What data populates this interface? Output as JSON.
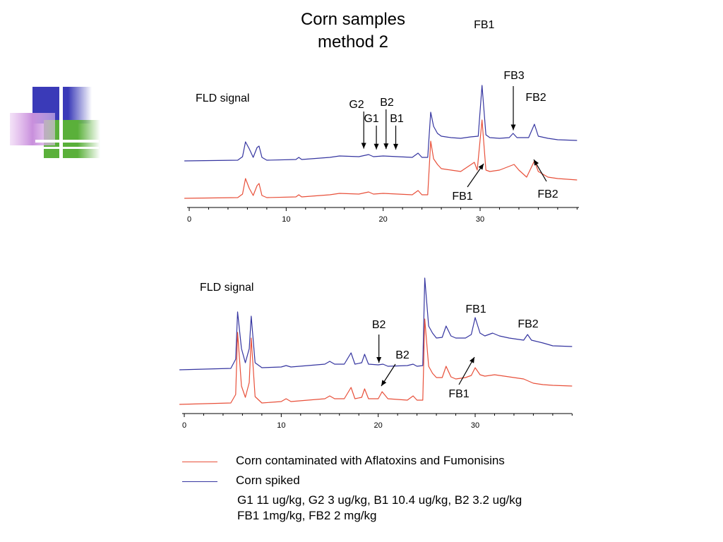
{
  "title": {
    "line1": "Corn samples",
    "line2": "method 2"
  },
  "colors": {
    "contaminated": "#e8503a",
    "spiked": "#3535a0",
    "axis": "#000000"
  },
  "legend": [
    {
      "label": "Corn contaminated with Aflatoxins and Fumonisins",
      "color": "#e8503a"
    },
    {
      "label": "Corn spiked",
      "color": "#3535a0"
    }
  ],
  "spike_levels": [
    "G1 11 ug/kg, G2 3 ug/kg, B1 10.4 ug/kg, B2 3.2 ug/kg",
    "FB1  1mg/kg, FB2  2 mg/kg"
  ],
  "chart_data": [
    {
      "type": "line",
      "signal_label": "FLD signal",
      "xlim": [
        0,
        40
      ],
      "x_ticks": [
        0,
        10,
        20,
        30
      ],
      "series": [
        {
          "name": "Corn spiked",
          "color": "#3535a0",
          "points": [
            [
              -0.5,
              3
            ],
            [
              5,
              4
            ],
            [
              5.5,
              9
            ],
            [
              5.8,
              30
            ],
            [
              6.2,
              20
            ],
            [
              6.6,
              8
            ],
            [
              7,
              22
            ],
            [
              7.2,
              24
            ],
            [
              7.5,
              8
            ],
            [
              8,
              4
            ],
            [
              11,
              5
            ],
            [
              11.3,
              8
            ],
            [
              11.6,
              5
            ],
            [
              14.5,
              8
            ],
            [
              15.5,
              10
            ],
            [
              17.5,
              9
            ],
            [
              18.5,
              12
            ],
            [
              19,
              9
            ],
            [
              20,
              10
            ],
            [
              21.5,
              9
            ],
            [
              23,
              8
            ],
            [
              23.6,
              14
            ],
            [
              24,
              8
            ],
            [
              24.6,
              8
            ],
            [
              24.9,
              72
            ],
            [
              25.2,
              52
            ],
            [
              25.6,
              42
            ],
            [
              26,
              38
            ],
            [
              27,
              36
            ],
            [
              28,
              35
            ],
            [
              29,
              37
            ],
            [
              29.8,
              38
            ],
            [
              30.2,
              110
            ],
            [
              30.6,
              40
            ],
            [
              31,
              36
            ],
            [
              32,
              35
            ],
            [
              33,
              36
            ],
            [
              33.4,
              42
            ],
            [
              33.8,
              36
            ],
            [
              35,
              36
            ],
            [
              35.6,
              55
            ],
            [
              36,
              38
            ],
            [
              37,
              35
            ],
            [
              38,
              33
            ],
            [
              40,
              32
            ]
          ]
        },
        {
          "name": "Corn contaminated with Aflatoxins and Fumonisins",
          "color": "#e8503a",
          "points": [
            [
              -0.5,
              -26
            ],
            [
              5,
              -25
            ],
            [
              5.5,
              -20
            ],
            [
              5.8,
              2
            ],
            [
              6.2,
              -12
            ],
            [
              6.6,
              -22
            ],
            [
              7,
              -8
            ],
            [
              7.2,
              -5
            ],
            [
              7.5,
              -22
            ],
            [
              8,
              -25
            ],
            [
              11,
              -24
            ],
            [
              11.3,
              -21
            ],
            [
              11.6,
              -24
            ],
            [
              14.5,
              -21
            ],
            [
              15.5,
              -19
            ],
            [
              17.5,
              -20
            ],
            [
              18.5,
              -17
            ],
            [
              19,
              -20
            ],
            [
              20,
              -19
            ],
            [
              21.5,
              -20
            ],
            [
              23,
              -21
            ],
            [
              23.6,
              -15
            ],
            [
              24,
              -21
            ],
            [
              24.6,
              -21
            ],
            [
              24.9,
              55
            ],
            [
              25.2,
              30
            ],
            [
              25.6,
              22
            ],
            [
              26,
              16
            ],
            [
              27,
              14
            ],
            [
              28,
              12
            ],
            [
              29.4,
              25
            ],
            [
              29.7,
              14
            ],
            [
              30.2,
              85
            ],
            [
              30.6,
              14
            ],
            [
              31,
              12
            ],
            [
              32,
              14
            ],
            [
              33.5,
              22
            ],
            [
              34,
              14
            ],
            [
              34.8,
              4
            ],
            [
              35.6,
              27
            ],
            [
              36,
              12
            ],
            [
              37,
              4
            ],
            [
              38,
              2
            ],
            [
              40,
              0
            ]
          ]
        }
      ],
      "annotations": {
        "aflatoxin_arrows": [
          {
            "label": "G2",
            "x": 18.0
          },
          {
            "label": "G1",
            "x": 19.3
          },
          {
            "label": "B2",
            "x": 20.3
          },
          {
            "label": "B1",
            "x": 21.3
          }
        ],
        "peak_labels": [
          {
            "label": "FB1",
            "x": 30.2,
            "series": "Corn spiked"
          },
          {
            "label": "FB3",
            "x": 33.5,
            "series": "Corn spiked"
          },
          {
            "label": "FB2",
            "x": 35.6,
            "series": "Corn spiked"
          },
          {
            "label": "FB1",
            "x": 30.2,
            "series": "Corn contaminated with Aflatoxins and Fumonisins"
          },
          {
            "label": "FB2",
            "x": 35.6,
            "series": "Corn contaminated with Aflatoxins and Fumonisins"
          }
        ]
      }
    },
    {
      "type": "line",
      "signal_label": "FLD signal",
      "xlim": [
        0,
        40
      ],
      "x_ticks": [
        0,
        10,
        20,
        30
      ],
      "series": [
        {
          "name": "Corn spiked",
          "color": "#3535a0",
          "points": [
            [
              -0.5,
              10
            ],
            [
              4.8,
              12
            ],
            [
              5.3,
              25
            ],
            [
              5.5,
              92
            ],
            [
              5.9,
              40
            ],
            [
              6.3,
              20
            ],
            [
              6.7,
              40
            ],
            [
              6.9,
              86
            ],
            [
              7.3,
              20
            ],
            [
              8,
              13
            ],
            [
              10,
              14
            ],
            [
              10.5,
              16
            ],
            [
              11,
              14
            ],
            [
              14.5,
              18
            ],
            [
              15,
              22
            ],
            [
              15.5,
              18
            ],
            [
              16.5,
              18
            ],
            [
              17.2,
              34
            ],
            [
              17.6,
              18
            ],
            [
              18.3,
              20
            ],
            [
              18.6,
              32
            ],
            [
              19,
              18
            ],
            [
              20,
              17
            ],
            [
              20.5,
              18
            ],
            [
              21,
              15
            ],
            [
              23,
              16
            ],
            [
              23.6,
              18
            ],
            [
              24,
              15
            ],
            [
              24.6,
              16
            ],
            [
              24.8,
              140
            ],
            [
              25.2,
              72
            ],
            [
              25.6,
              62
            ],
            [
              26,
              55
            ],
            [
              26.6,
              56
            ],
            [
              27,
              72
            ],
            [
              27.5,
              58
            ],
            [
              28,
              55
            ],
            [
              29,
              55
            ],
            [
              29.6,
              60
            ],
            [
              30,
              84
            ],
            [
              30.5,
              62
            ],
            [
              31,
              58
            ],
            [
              31.8,
              62
            ],
            [
              32.5,
              58
            ],
            [
              33.5,
              55
            ],
            [
              35,
              52
            ],
            [
              35.4,
              60
            ],
            [
              35.8,
              52
            ],
            [
              37,
              48
            ],
            [
              38,
              44
            ],
            [
              40,
              43
            ]
          ]
        },
        {
          "name": "Corn contaminated with Aflatoxins and Fumonisins",
          "color": "#e8503a",
          "points": [
            [
              -0.5,
              -6
            ],
            [
              4.8,
              -4
            ],
            [
              5.3,
              8
            ],
            [
              5.5,
              96
            ],
            [
              5.9,
              20
            ],
            [
              6.3,
              4
            ],
            [
              6.7,
              25
            ],
            [
              6.9,
              88
            ],
            [
              7.3,
              5
            ],
            [
              8,
              -4
            ],
            [
              10,
              -2
            ],
            [
              10.5,
              2
            ],
            [
              11,
              -2
            ],
            [
              14.5,
              2
            ],
            [
              15,
              6
            ],
            [
              15.5,
              2
            ],
            [
              16.5,
              2
            ],
            [
              17.2,
              18
            ],
            [
              17.6,
              2
            ],
            [
              18.3,
              4
            ],
            [
              18.6,
              16
            ],
            [
              19,
              2
            ],
            [
              20,
              2
            ],
            [
              20.4,
              12
            ],
            [
              21,
              2
            ],
            [
              23,
              0
            ],
            [
              23.6,
              6
            ],
            [
              24,
              0
            ],
            [
              24.6,
              0
            ],
            [
              24.8,
              115
            ],
            [
              25.2,
              48
            ],
            [
              25.6,
              38
            ],
            [
              26,
              32
            ],
            [
              26.6,
              32
            ],
            [
              27,
              48
            ],
            [
              27.5,
              33
            ],
            [
              28,
              30
            ],
            [
              29,
              32
            ],
            [
              29.6,
              35
            ],
            [
              30,
              46
            ],
            [
              30.5,
              36
            ],
            [
              31,
              34
            ],
            [
              32,
              36
            ],
            [
              33.5,
              33
            ],
            [
              35,
              30
            ],
            [
              35.5,
              27
            ],
            [
              36,
              24
            ],
            [
              37,
              22
            ],
            [
              38,
              21
            ],
            [
              40,
              20
            ]
          ]
        }
      ],
      "annotations": {
        "peak_labels": [
          {
            "label": "B2",
            "x": 20.0,
            "series": "Corn spiked"
          },
          {
            "label": "FB1",
            "x": 30.0,
            "series": "Corn spiked"
          },
          {
            "label": "FB2",
            "x": 35.4,
            "series": "Corn spiked"
          },
          {
            "label": "B2",
            "x": 20.4,
            "series": "Corn contaminated with Aflatoxins and Fumonisins"
          },
          {
            "label": "FB1",
            "x": 30.0,
            "series": "Corn contaminated with Aflatoxins and Fumonisins"
          }
        ]
      }
    }
  ]
}
